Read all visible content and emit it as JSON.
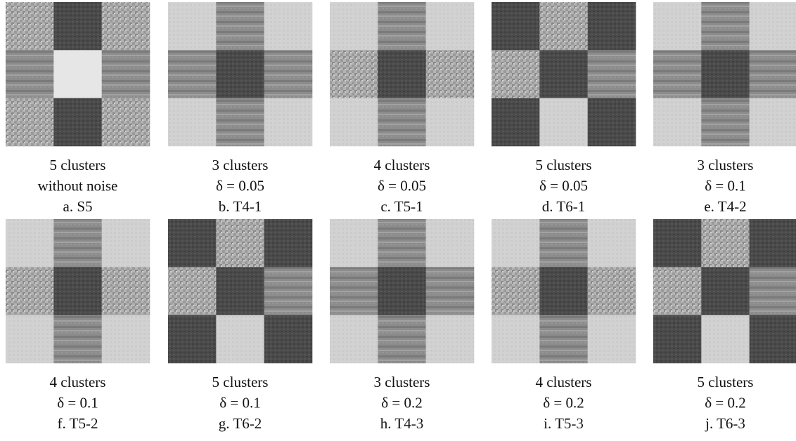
{
  "figure": {
    "panels": [
      {
        "lines": [
          "5 clusters",
          "without noise",
          "a. S5"
        ]
      },
      {
        "lines": [
          "3 clusters",
          "δ = 0.05",
          "b. T4-1"
        ]
      },
      {
        "lines": [
          "4 clusters",
          "δ = 0.05",
          "c. T5-1"
        ]
      },
      {
        "lines": [
          "5 clusters",
          "δ = 0.05",
          "d. T6-1"
        ]
      },
      {
        "lines": [
          "3 clusters",
          "δ = 0.1",
          "e. T4-2"
        ]
      },
      {
        "lines": [
          "4 clusters",
          "δ = 0.1",
          "f. T5-2"
        ]
      },
      {
        "lines": [
          "5 clusters",
          "δ = 0.1",
          "g. T6-2"
        ]
      },
      {
        "lines": [
          "3 clusters",
          "δ = 0.2",
          "h. T4-3"
        ]
      },
      {
        "lines": [
          "4 clusters",
          "δ = 0.2",
          "i. T5-3"
        ]
      },
      {
        "lines": [
          "5 clusters",
          "δ = 0.2",
          "j. T6-3"
        ]
      }
    ]
  }
}
